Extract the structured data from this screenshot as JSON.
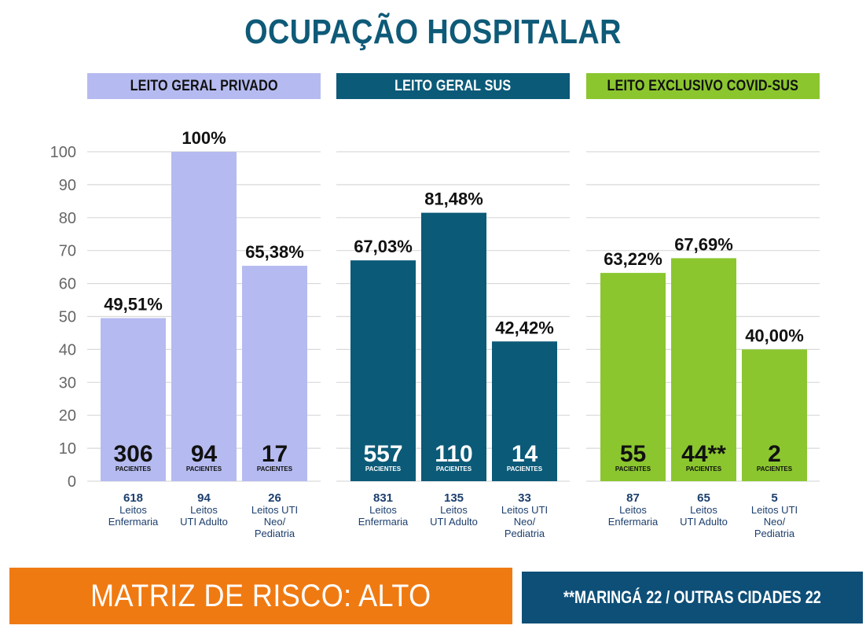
{
  "title": "OCUPAÇÃO HOSPITALAR",
  "colors": {
    "title": "#0e5a78",
    "private": "#b5bbf0",
    "sus": "#0b5a78",
    "covid": "#8bc62f",
    "grid": "#d9d9d9",
    "footer_left": "#f07a12",
    "footer_right": "#0e4f78"
  },
  "panels": [
    {
      "header": "LEITO GERAL PRIVADO"
    },
    {
      "header": "LEITO GERAL SUS"
    },
    {
      "header": "LEITO EXCLUSIVO COVID-SUS"
    }
  ],
  "chart_data": {
    "type": "bar",
    "title": "OCUPAÇÃO HOSPITALAR",
    "ylim": [
      0,
      100
    ],
    "yticks": [
      0,
      10,
      20,
      30,
      40,
      50,
      60,
      70,
      80,
      90,
      100
    ],
    "grid": true,
    "groups": [
      {
        "name": "LEITO GERAL PRIVADO",
        "bars": [
          {
            "value": 49.51,
            "value_label": "49,51%",
            "patients": "306",
            "patients_label": "PACIENTES",
            "beds": "618",
            "category": [
              "Leitos",
              "Enfermaria"
            ]
          },
          {
            "value": 100,
            "value_label": "100%",
            "patients": "94",
            "patients_label": "PACIENTES",
            "beds": "94",
            "category": [
              "Leitos",
              "UTI Adulto"
            ]
          },
          {
            "value": 65.38,
            "value_label": "65,38%",
            "patients": "17",
            "patients_label": "PACIENTES",
            "beds": "26",
            "category": [
              "Leitos UTI",
              "Neo/",
              "Pediatria"
            ]
          }
        ]
      },
      {
        "name": "LEITO GERAL SUS",
        "bars": [
          {
            "value": 67.03,
            "value_label": "67,03%",
            "patients": "557",
            "patients_label": "PACIENTES",
            "beds": "831",
            "category": [
              "Leitos",
              "Enfermaria"
            ]
          },
          {
            "value": 81.48,
            "value_label": "81,48%",
            "patients": "110",
            "patients_label": "PACIENTES",
            "beds": "135",
            "category": [
              "Leitos",
              "UTI Adulto"
            ]
          },
          {
            "value": 42.42,
            "value_label": "42,42%",
            "patients": "14",
            "patients_label": "PACIENTES",
            "beds": "33",
            "category": [
              "Leitos UTI",
              "Neo/",
              "Pediatria"
            ]
          }
        ]
      },
      {
        "name": "LEITO EXCLUSIVO COVID-SUS",
        "bars": [
          {
            "value": 63.22,
            "value_label": "63,22%",
            "patients": "55",
            "patients_label": "PACIENTES",
            "beds": "87",
            "category": [
              "Leitos",
              "Enfermaria"
            ]
          },
          {
            "value": 67.69,
            "value_label": "67,69%",
            "patients": "44**",
            "patients_label": "PACIENTES",
            "beds": "65",
            "category": [
              "Leitos",
              "UTI Adulto"
            ]
          },
          {
            "value": 40.0,
            "value_label": "40,00%",
            "patients": "2",
            "patients_label": "PACIENTES",
            "beds": "5",
            "category": [
              "Leitos UTI",
              "Neo/",
              "Pediatria"
            ]
          }
        ]
      }
    ]
  },
  "footer": {
    "risk": "MATRIZ DE RISCO: ALTO",
    "note": "**MARINGÁ 22 / OUTRAS CIDADES 22"
  }
}
